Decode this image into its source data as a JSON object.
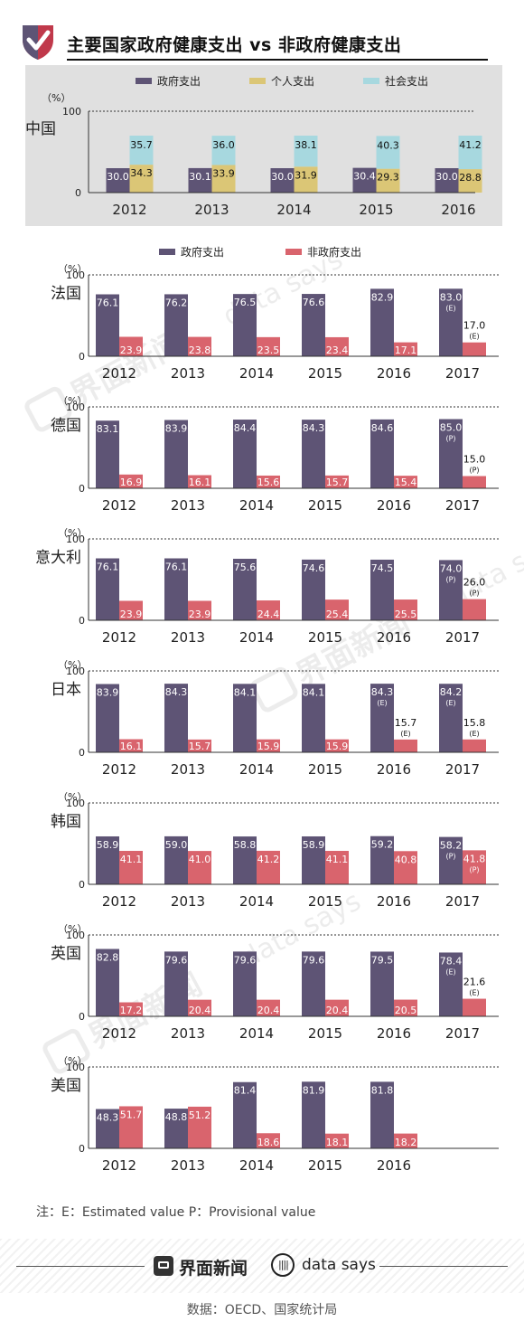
{
  "title": "主要国家政府健康支出 vs 非政府健康支出",
  "note": "注：E：Estimated value   P：Provisional value",
  "brand": {
    "name1": "界面新闻",
    "name2": "data says",
    "wave": "||||"
  },
  "source": "数据：OECD、国家统计局",
  "watermark": {
    "text1": "界面新闻",
    "text2": "data says"
  },
  "colors": {
    "gov": "#5e5475",
    "personal": "#dbc676",
    "social": "#a7d8df",
    "nongov": "#d9646d",
    "panel": "#e0e0e0"
  },
  "chart_data": [
    {
      "type": "bar",
      "country": "中国",
      "unit": "（%）",
      "ylim": [
        0,
        100
      ],
      "yticks": [
        "0",
        "100"
      ],
      "legend": [
        "政府支出",
        "个人支出",
        "社会支出"
      ],
      "categories": [
        "2012",
        "2013",
        "2014",
        "2015",
        "2016"
      ],
      "series": [
        {
          "name": "政府支出",
          "values": [
            30.0,
            30.1,
            30.0,
            30.4,
            30.0
          ]
        },
        {
          "name": "个人支出",
          "values": [
            34.3,
            33.9,
            31.9,
            29.3,
            28.8
          ]
        },
        {
          "name": "社会支出",
          "values": [
            35.7,
            36.0,
            38.1,
            40.3,
            41.2
          ]
        }
      ]
    },
    {
      "type": "bar",
      "country": "法国",
      "unit": "（%）",
      "ylim": [
        0,
        100
      ],
      "yticks": [
        "0",
        "100"
      ],
      "legend": [
        "政府支出",
        "非政府支出"
      ],
      "categories": [
        "2012",
        "2013",
        "2014",
        "2015",
        "2016",
        "2017"
      ],
      "series": [
        {
          "name": "政府支出",
          "values": [
            76.1,
            76.2,
            76.5,
            76.6,
            82.9,
            83.0
          ],
          "flags": [
            "",
            "",
            "",
            "",
            "",
            "(E)"
          ]
        },
        {
          "name": "非政府支出",
          "values": [
            23.9,
            23.8,
            23.5,
            23.4,
            17.1,
            17.0
          ],
          "flags": [
            "",
            "",
            "",
            "",
            "",
            "(E)"
          ]
        }
      ]
    },
    {
      "type": "bar",
      "country": "德国",
      "unit": "（%）",
      "ylim": [
        0,
        100
      ],
      "yticks": [
        "0",
        "100"
      ],
      "categories": [
        "2012",
        "2013",
        "2014",
        "2015",
        "2016",
        "2017"
      ],
      "series": [
        {
          "name": "政府支出",
          "values": [
            83.1,
            83.9,
            84.4,
            84.3,
            84.6,
            85.0
          ],
          "flags": [
            "",
            "",
            "",
            "",
            "",
            "(P)"
          ]
        },
        {
          "name": "非政府支出",
          "values": [
            16.9,
            16.1,
            15.6,
            15.7,
            15.4,
            15.0
          ],
          "flags": [
            "",
            "",
            "",
            "",
            "",
            "(P)"
          ]
        }
      ]
    },
    {
      "type": "bar",
      "country": "意大利",
      "unit": "（%）",
      "ylim": [
        0,
        100
      ],
      "yticks": [
        "0",
        "100"
      ],
      "categories": [
        "2012",
        "2013",
        "2014",
        "2015",
        "2016",
        "2017"
      ],
      "series": [
        {
          "name": "政府支出",
          "values": [
            76.1,
            76.1,
            75.6,
            74.6,
            74.5,
            74.0
          ],
          "flags": [
            "",
            "",
            "",
            "",
            "",
            "(P)"
          ]
        },
        {
          "name": "非政府支出",
          "values": [
            23.9,
            23.9,
            24.4,
            25.4,
            25.5,
            26.0
          ],
          "flags": [
            "",
            "",
            "",
            "",
            "",
            "(P)"
          ]
        }
      ]
    },
    {
      "type": "bar",
      "country": "日本",
      "unit": "（%）",
      "ylim": [
        0,
        100
      ],
      "yticks": [
        "0",
        "100"
      ],
      "categories": [
        "2012",
        "2013",
        "2014",
        "2015",
        "2016",
        "2017"
      ],
      "series": [
        {
          "name": "政府支出",
          "values": [
            83.9,
            84.3,
            84.1,
            84.1,
            84.3,
            84.2
          ],
          "flags": [
            "",
            "",
            "",
            "",
            "(E)",
            "(E)"
          ]
        },
        {
          "name": "非政府支出",
          "values": [
            16.1,
            15.7,
            15.9,
            15.9,
            15.7,
            15.8
          ],
          "flags": [
            "",
            "",
            "",
            "",
            "(E)",
            "(E)"
          ]
        }
      ]
    },
    {
      "type": "bar",
      "country": "韩国",
      "unit": "（%）",
      "ylim": [
        0,
        100
      ],
      "yticks": [
        "0",
        "100"
      ],
      "categories": [
        "2012",
        "2013",
        "2014",
        "2015",
        "2016",
        "2017"
      ],
      "series": [
        {
          "name": "政府支出",
          "values": [
            58.9,
            59.0,
            58.8,
            58.9,
            59.2,
            58.2
          ],
          "flags": [
            "",
            "",
            "",
            "",
            "",
            "(P)"
          ]
        },
        {
          "name": "非政府支出",
          "values": [
            41.1,
            41.0,
            41.2,
            41.1,
            40.8,
            41.8
          ],
          "flags": [
            "",
            "",
            "",
            "",
            "",
            "(P)"
          ]
        }
      ]
    },
    {
      "type": "bar",
      "country": "英国",
      "unit": "（%）",
      "ylim": [
        0,
        100
      ],
      "yticks": [
        "0",
        "100"
      ],
      "categories": [
        "2012",
        "2013",
        "2014",
        "2015",
        "2016",
        "2017"
      ],
      "series": [
        {
          "name": "政府支出",
          "values": [
            82.8,
            79.6,
            79.6,
            79.6,
            79.5,
            78.4
          ],
          "flags": [
            "",
            "",
            "",
            "",
            "",
            "(E)"
          ]
        },
        {
          "name": "非政府支出",
          "values": [
            17.2,
            20.4,
            20.4,
            20.4,
            20.5,
            21.6
          ],
          "flags": [
            "",
            "",
            "",
            "",
            "",
            "(E)"
          ]
        }
      ]
    },
    {
      "type": "bar",
      "country": "美国",
      "unit": "（%）",
      "ylim": [
        0,
        100
      ],
      "yticks": [
        "0",
        "100"
      ],
      "categories": [
        "2012",
        "2013",
        "2014",
        "2015",
        "2016"
      ],
      "series": [
        {
          "name": "政府支出",
          "values": [
            48.3,
            48.8,
            81.4,
            81.9,
            81.8
          ]
        },
        {
          "name": "非政府支出",
          "values": [
            51.7,
            51.2,
            18.6,
            18.1,
            18.2
          ]
        }
      ]
    }
  ]
}
